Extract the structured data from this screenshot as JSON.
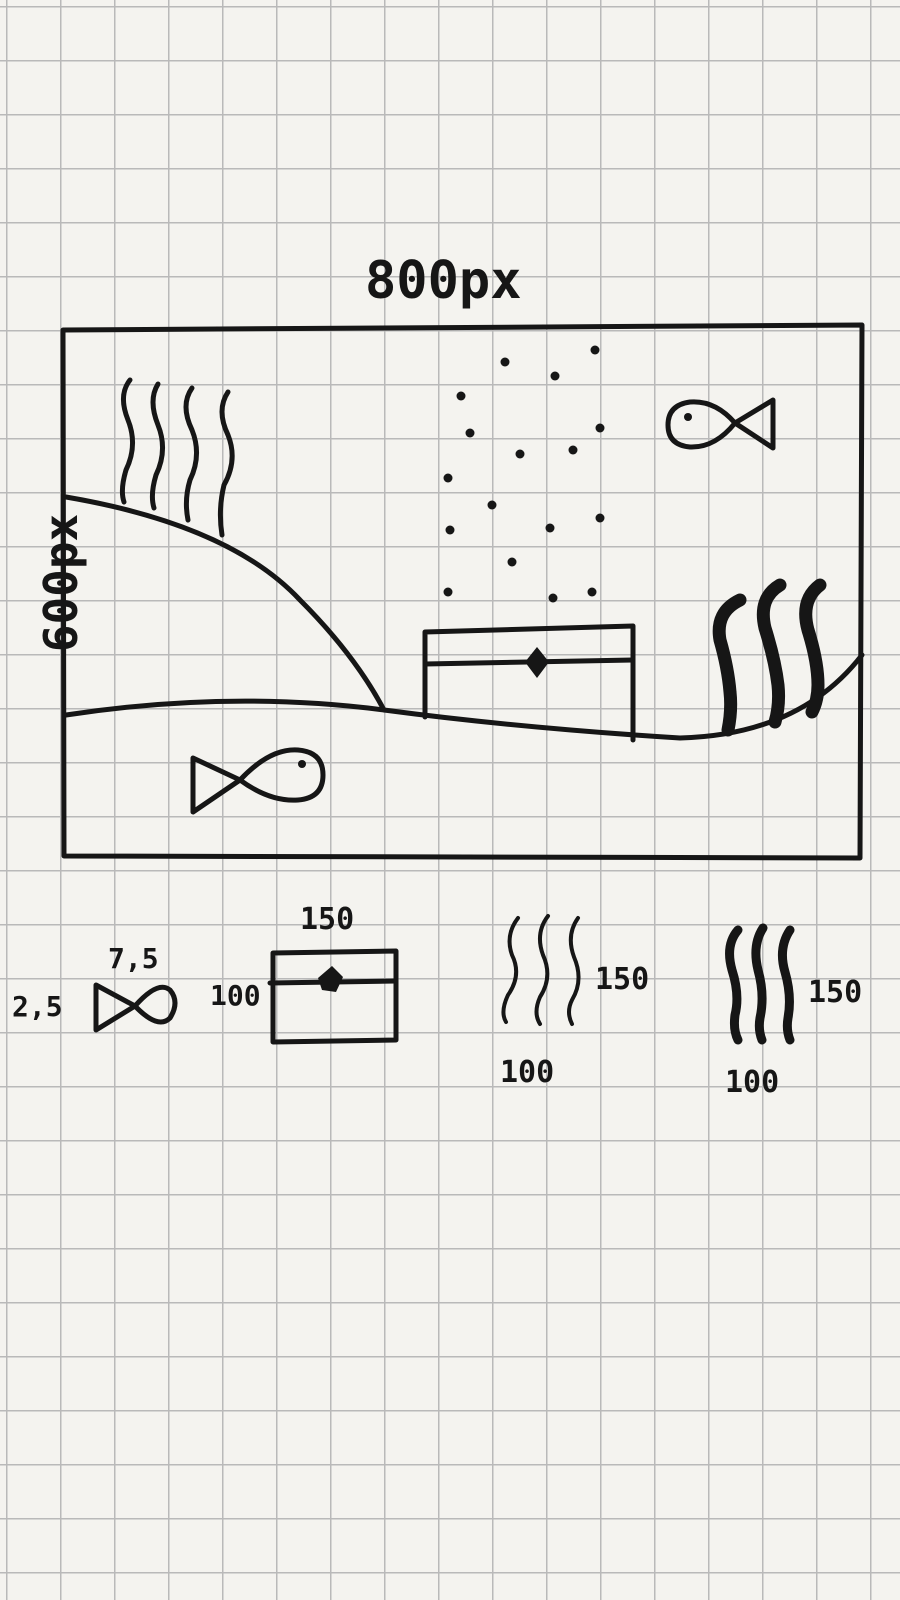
{
  "canvas": {
    "width_label": "800px",
    "height_label": "600px"
  },
  "legend": {
    "fish": {
      "height_label": "7,5",
      "width_label": "2,5"
    },
    "chest": {
      "width_label": "150",
      "height_label": "100"
    },
    "seaweed_thin": {
      "height_label": "150",
      "width_label": "100"
    },
    "seaweed_thick": {
      "height_label": "150",
      "width_label": "100"
    }
  },
  "colors": {
    "ink": "#161616",
    "paper": "#f4f3ef",
    "grid": "#b9b9b9"
  }
}
